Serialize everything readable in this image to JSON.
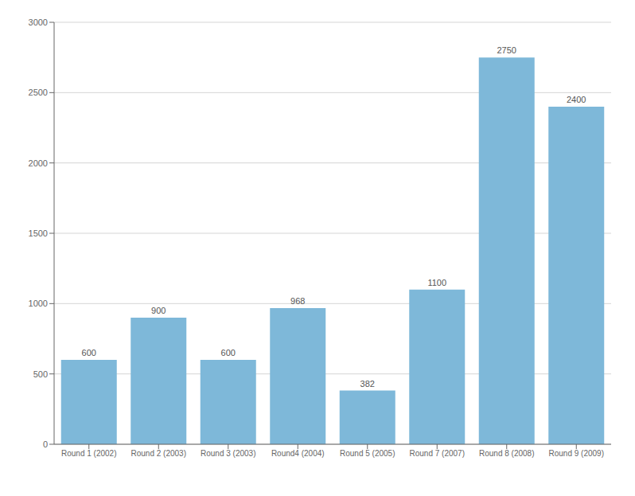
{
  "chart_data": {
    "type": "bar",
    "categories": [
      "Round 1 (2002)",
      "Round 2 (2003)",
      "Round 3 (2003)",
      "Round4 (2004)",
      "Round 5 (2005)",
      "Round 7 (2007)",
      "Round 8 (2008)",
      "Round 9 (2009)"
    ],
    "values": [
      600,
      900,
      600,
      968,
      382,
      1100,
      2750,
      2400
    ],
    "color": "#7EB8D9",
    "ylim": [
      0,
      3000
    ],
    "yticks": [
      0,
      500,
      1000,
      1500,
      2000,
      2500,
      3000
    ],
    "grid": true,
    "data_labels": true
  }
}
